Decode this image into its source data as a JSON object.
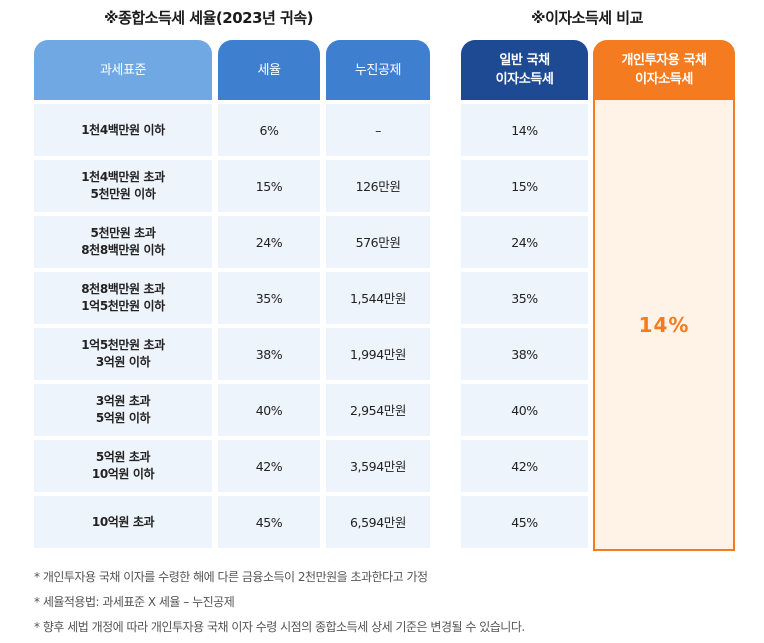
{
  "titles": {
    "left": "※종합소득세 세율(2023년 귀속)",
    "right": "※이자소득세 비교"
  },
  "headers": {
    "bracket": "과세표준",
    "rate": "세율",
    "deduction": "누진공제",
    "general": "일반 국채\n이자소득세",
    "personal": "개인투자용 국채\n이자소득세"
  },
  "rows": [
    {
      "bracket": "1천4백만원 이하",
      "rate": "6%",
      "deduction": "–",
      "general": "14%"
    },
    {
      "bracket": "1천4백만원 초과\n5천만원 이하",
      "rate": "15%",
      "deduction": "126만원",
      "general": "15%"
    },
    {
      "bracket": "5천만원 초과\n8천8백만원 이하",
      "rate": "24%",
      "deduction": "576만원",
      "general": "24%"
    },
    {
      "bracket": "8천8백만원 초과\n1억5천만원 이하",
      "rate": "35%",
      "deduction": "1,544만원",
      "general": "35%"
    },
    {
      "bracket": "1억5천만원 초과\n3억원 이하",
      "rate": "38%",
      "deduction": "1,994만원",
      "general": "38%"
    },
    {
      "bracket": "3억원 초과\n5억원 이하",
      "rate": "40%",
      "deduction": "2,954만원",
      "general": "40%"
    },
    {
      "bracket": "5억원 초과\n10억원 이하",
      "rate": "42%",
      "deduction": "3,594만원",
      "general": "42%"
    },
    {
      "bracket": "10억원 초과",
      "rate": "45%",
      "deduction": "6,594만원",
      "general": "45%"
    }
  ],
  "personal_rate": "14%",
  "notes": [
    "* 개인투자용 국채 이자를 수령한 해에 다른 금융소득이 2천만원을 초과한다고 가정",
    "* 세율적용법: 과세표준 X 세율 – 누진공제",
    "* 향후 세법 개정에 따라 개인투자용 국채 이자 수령 시점의 종합소득세 상세 기준은 변경될 수 있습니다."
  ]
}
